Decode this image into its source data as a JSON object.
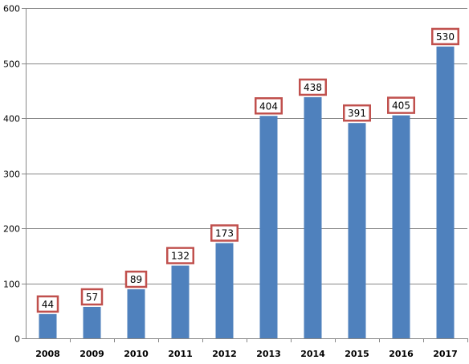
{
  "chart_data": {
    "type": "bar",
    "title": "",
    "xlabel": "",
    "ylabel": "",
    "categories": [
      "2008",
      "2009",
      "2010",
      "2011",
      "2012",
      "2013",
      "2014",
      "2015",
      "2016",
      "2017"
    ],
    "values": [
      44,
      57,
      89,
      132,
      173,
      404,
      438,
      391,
      405,
      530
    ],
    "data_labels": [
      "44",
      "57",
      "89",
      "132",
      "173",
      "404",
      "438",
      "391",
      "405",
      "530"
    ],
    "ylim": [
      0,
      600
    ],
    "yticks": [
      "0",
      "100",
      "200",
      "300",
      "400",
      "500",
      "600"
    ],
    "grid": true,
    "bar_color": "#4f81bd",
    "label_border_color": "#c0504d",
    "grid_color": "#888888"
  }
}
